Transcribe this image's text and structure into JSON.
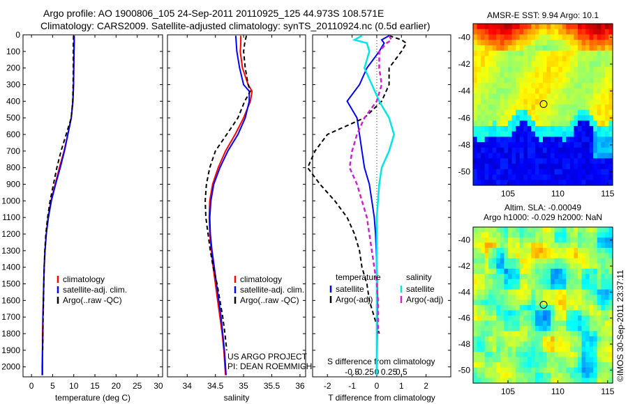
{
  "title_line1": "Argo profile: AO 1900806_105 24-Sep-2011 20110925_125 44.973S 108.571E",
  "title_line2": "Climatology: CARS2009. Satellite-adjusted climatology: synTS_20110924.nc (0.5d earlier)",
  "credit_line1": "US ARGO PROJECT",
  "credit_line2": "PI: DEAN ROEMMICH",
  "timestamp": "©IMOS 30-Sep-2011 23:37:11",
  "colors": {
    "climatology": "#ff0000",
    "satellite": "#0000ff",
    "argo": "#000000",
    "salinity_sat": "#00e5e5",
    "salinity_argo": "#d020d0"
  },
  "chart_data": [
    {
      "id": "temperature",
      "type": "line",
      "xlabel": "temperature (deg C)",
      "xlim": [
        -2,
        31
      ],
      "xticks": [
        0,
        5,
        10,
        15,
        20,
        25,
        30
      ],
      "ylim": [
        2060,
        0
      ],
      "yticks": [
        0,
        100,
        200,
        300,
        400,
        500,
        600,
        700,
        800,
        900,
        1000,
        1100,
        1200,
        1300,
        1400,
        1500,
        1600,
        1700,
        1800,
        1900,
        2000
      ],
      "legend": [
        "climatology",
        "satellite-adj. clim.",
        "Argo(..raw -QC)"
      ],
      "depth": [
        5,
        50,
        100,
        200,
        300,
        400,
        500,
        600,
        700,
        800,
        900,
        1000,
        1100,
        1200,
        1300,
        1400,
        1500,
        1600,
        1700,
        1800,
        1900,
        2000,
        2050
      ],
      "series": [
        {
          "name": "climatology",
          "values": [
            10.1,
            10.1,
            10.05,
            10.0,
            9.95,
            9.8,
            9.4,
            8.6,
            7.7,
            6.6,
            5.6,
            4.6,
            3.9,
            3.5,
            3.2,
            3.0,
            2.9,
            2.8,
            2.7,
            2.6,
            2.6,
            2.5,
            2.5
          ]
        },
        {
          "name": "satellite-adj. clim.",
          "values": [
            10.1,
            10.1,
            10.05,
            10.0,
            9.95,
            9.8,
            9.4,
            8.6,
            7.8,
            6.8,
            5.7,
            4.7,
            4.0,
            3.5,
            3.2,
            3.0,
            2.9,
            2.8,
            2.7,
            2.7,
            2.6,
            2.6,
            2.6
          ]
        },
        {
          "name": "Argo(..raw -QC)",
          "values": [
            9.95,
            9.9,
            9.9,
            9.9,
            9.85,
            9.75,
            9.4,
            8.2,
            7.0,
            6.0,
            5.2,
            4.4,
            3.8,
            3.4,
            3.15,
            3.0,
            2.9,
            2.85,
            2.75,
            2.7,
            2.65,
            null,
            null
          ]
        }
      ]
    },
    {
      "id": "salinity",
      "type": "line",
      "xlabel": "salinity",
      "xlim": [
        33.65,
        36.1
      ],
      "xticks": [
        34,
        34.5,
        35,
        35.5,
        36
      ],
      "ylim": [
        2060,
        0
      ],
      "legend": [
        "climatology",
        "satellite-adj. clim.",
        "Argo(..raw -QC)"
      ],
      "depth": [
        5,
        50,
        100,
        200,
        300,
        340,
        400,
        500,
        600,
        700,
        800,
        900,
        1000,
        1100,
        1200,
        1300,
        1400,
        1500,
        1600,
        1700,
        1800,
        1900,
        2000,
        2050
      ],
      "series": [
        {
          "name": "climatology",
          "values": [
            34.95,
            34.95,
            34.94,
            34.98,
            35.08,
            35.15,
            35.12,
            35.0,
            34.85,
            34.68,
            34.55,
            34.45,
            34.4,
            34.39,
            34.4,
            34.43,
            34.46,
            34.5,
            34.54,
            34.58,
            34.62,
            34.65,
            34.67,
            34.68
          ]
        },
        {
          "name": "satellite-adj. clim.",
          "values": [
            34.86,
            34.87,
            34.88,
            34.93,
            35.0,
            35.1,
            35.1,
            35.03,
            34.9,
            34.72,
            34.58,
            34.47,
            34.42,
            34.4,
            34.41,
            34.44,
            34.48,
            34.52,
            34.56,
            34.6,
            34.63,
            34.66,
            34.68,
            34.69
          ]
        },
        {
          "name": "Argo(..raw -QC)",
          "values": [
            35.05,
            35.02,
            35.0,
            35.03,
            35.08,
            35.12,
            35.02,
            34.9,
            34.7,
            34.5,
            34.4,
            34.34,
            34.32,
            34.33,
            34.37,
            34.41,
            34.46,
            34.53,
            34.58,
            34.63,
            34.67,
            34.7,
            null,
            null
          ]
        }
      ]
    },
    {
      "id": "difference",
      "type": "line",
      "xlabel": "T difference from climatology",
      "xlabel2": "S difference from climatology",
      "xlim": [
        -2.6,
        3.0
      ],
      "xticks": [
        -2,
        -1,
        0,
        1,
        2
      ],
      "x2ticks": [
        "-0.5",
        "-0.25",
        "0",
        "0.25",
        "0.5"
      ],
      "ylim": [
        2060,
        0
      ],
      "legend_left_title": "temperature",
      "legend_right_title": "salinity",
      "legend_left": [
        "satellite",
        "Argo(-adj)"
      ],
      "legend_right": [
        "satellite",
        "Argo(-adj)"
      ],
      "depth": [
        5,
        30,
        50,
        100,
        200,
        300,
        400,
        500,
        600,
        700,
        800,
        900,
        1000,
        1100,
        1200,
        1300,
        1400,
        1500,
        1600,
        1700,
        1800,
        1900,
        2000,
        2050
      ],
      "series": [
        {
          "name": "temperature satellite",
          "values": [
            0.5,
            0.2,
            0.3,
            0.1,
            -0.4,
            -0.7,
            -1.2,
            -0.8,
            -0.7,
            -0.6,
            -0.5,
            -0.3,
            -0.2,
            -0.1,
            -0.05,
            -0.02,
            0.0,
            0.02,
            0.03,
            0.02,
            0.02,
            0.01,
            0.0,
            0.0
          ]
        },
        {
          "name": "temperature Argo(-adj)",
          "values": [
            0.5,
            1.0,
            1.2,
            1.0,
            0.5,
            0.5,
            0.2,
            -0.5,
            -2.0,
            -2.5,
            -2.8,
            -2.3,
            -1.7,
            -1.2,
            -0.9,
            -0.7,
            -0.6,
            -0.4,
            -0.3,
            -0.1,
            0.1,
            null,
            null,
            null
          ]
        },
        {
          "name": "salinity satellite",
          "values": [
            -0.6,
            -0.9,
            -0.4,
            -0.3,
            -0.5,
            -0.2,
            0.1,
            0.5,
            0.7,
            0.5,
            0.2,
            0.1,
            0.05,
            0.0,
            0.0,
            0.0,
            0.0,
            0.0,
            0.0,
            0.0,
            0.0,
            0.0,
            0.0,
            0.0
          ]
        },
        {
          "name": "salinity Argo(-adj)",
          "values": [
            0.5,
            0.6,
            0.4,
            0.1,
            0.1,
            0.2,
            0.0,
            -0.5,
            -0.8,
            -1.0,
            -1.1,
            -0.8,
            -0.6,
            -0.4,
            -0.3,
            -0.2,
            -0.1,
            0.0,
            0.05,
            0.05,
            0.05,
            null,
            null,
            null
          ]
        }
      ]
    },
    {
      "id": "sst-map",
      "type": "heatmap",
      "title": "AMSR-E SST: 9.94 Argo: 10.1",
      "xticks": [
        105,
        110,
        115
      ],
      "yticks": [
        -40,
        -42,
        -44,
        -46,
        -48,
        -50
      ],
      "xlim": [
        101.5,
        115.5
      ],
      "ylim": [
        -51,
        -39
      ],
      "float_position": {
        "lon": 108.57,
        "lat": -44.97
      }
    },
    {
      "id": "sla-map",
      "type": "heatmap",
      "title": "Altim. SLA: -0.00049",
      "subtitle": "Argo h1000: -0.029 h2000: NaN",
      "xticks": [
        105,
        110,
        115
      ],
      "yticks": [
        -40,
        -42,
        -44,
        -46,
        -48,
        -50
      ],
      "xlim": [
        101.5,
        115.5
      ],
      "ylim": [
        -51,
        -39
      ],
      "float_position": {
        "lon": 108.57,
        "lat": -44.97
      }
    }
  ]
}
